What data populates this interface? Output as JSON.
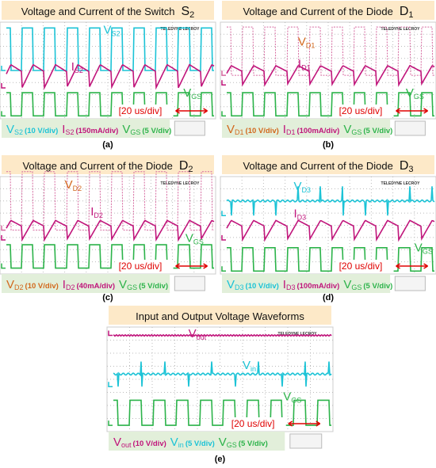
{
  "scope_brand": "TELEDYNE LECROY",
  "panels": [
    {
      "title": "Voltage and Current of the Switch",
      "symbol": "S",
      "symbol_sub": "2",
      "caption": "(a)",
      "timebase": "[20 us/div]",
      "labels": [
        {
          "main": "V",
          "sub": "S2"
        },
        {
          "main": "I",
          "sub": "S2"
        },
        {
          "main": "V",
          "sub": "GS"
        }
      ],
      "legend": [
        {
          "main": "V",
          "sub": "S2",
          "scale": "(10 V/div)"
        },
        {
          "main": "I",
          "sub": "S2",
          "scale": "(150mA/div)"
        },
        {
          "main": "V",
          "sub": "GS",
          "scale": "(5 V/div)"
        }
      ]
    },
    {
      "title": "Voltage and Current of the Diode",
      "symbol": "D",
      "symbol_sub": "1",
      "caption": "(b)",
      "timebase": "[20 us/div]",
      "labels": [
        {
          "main": "V",
          "sub": "D1"
        },
        {
          "main": "I",
          "sub": "D1"
        },
        {
          "main": "V",
          "sub": "GS"
        }
      ],
      "legend": [
        {
          "main": "V",
          "sub": "D1",
          "scale": "(10 V/div)"
        },
        {
          "main": "I",
          "sub": "D1",
          "scale": "(100mA/div)"
        },
        {
          "main": "V",
          "sub": "GS",
          "scale": "(5 V/div)"
        }
      ]
    },
    {
      "title": "Voltage and Current of the Diode",
      "symbol": "D",
      "symbol_sub": "2",
      "caption": "(c)",
      "timebase": "[20 us/div]",
      "labels": [
        {
          "main": "V",
          "sub": "D2"
        },
        {
          "main": "I",
          "sub": "D2"
        },
        {
          "main": "V",
          "sub": "GS"
        }
      ],
      "legend": [
        {
          "main": "V",
          "sub": "D2",
          "scale": "(10 V/div)"
        },
        {
          "main": "I",
          "sub": "D2",
          "scale": "(40mA/div)"
        },
        {
          "main": "V",
          "sub": "GS",
          "scale": "(5 V/div)"
        }
      ]
    },
    {
      "title": "Voltage and Current of the Diode",
      "symbol": "D",
      "symbol_sub": "3",
      "caption": "(d)",
      "timebase": "[20 us/div]",
      "labels": [
        {
          "main": "V",
          "sub": "D3"
        },
        {
          "main": "I",
          "sub": "D3"
        },
        {
          "main": "V",
          "sub": "GS"
        }
      ],
      "legend": [
        {
          "main": "V",
          "sub": "D3",
          "scale": "(10 V/div)"
        },
        {
          "main": "I",
          "sub": "D3",
          "scale": "(100mA/div)"
        },
        {
          "main": "V",
          "sub": "GS",
          "scale": "(5 V/div)"
        }
      ]
    },
    {
      "title": "Input and Output Voltage Waveforms",
      "symbol": "",
      "symbol_sub": "",
      "caption": "(e)",
      "timebase": "[20 us/div]",
      "labels": [
        {
          "main": "V",
          "sub": "out"
        },
        {
          "main": "V",
          "sub": "in"
        },
        {
          "main": "V",
          "sub": "GS"
        }
      ],
      "legend": [
        {
          "main": "V",
          "sub": "out",
          "scale": "(10 V/div)"
        },
        {
          "main": "V",
          "sub": "in",
          "scale": "(5 V/div)"
        },
        {
          "main": "V",
          "sub": "GS",
          "scale": "(5 V/div)"
        }
      ]
    }
  ]
}
